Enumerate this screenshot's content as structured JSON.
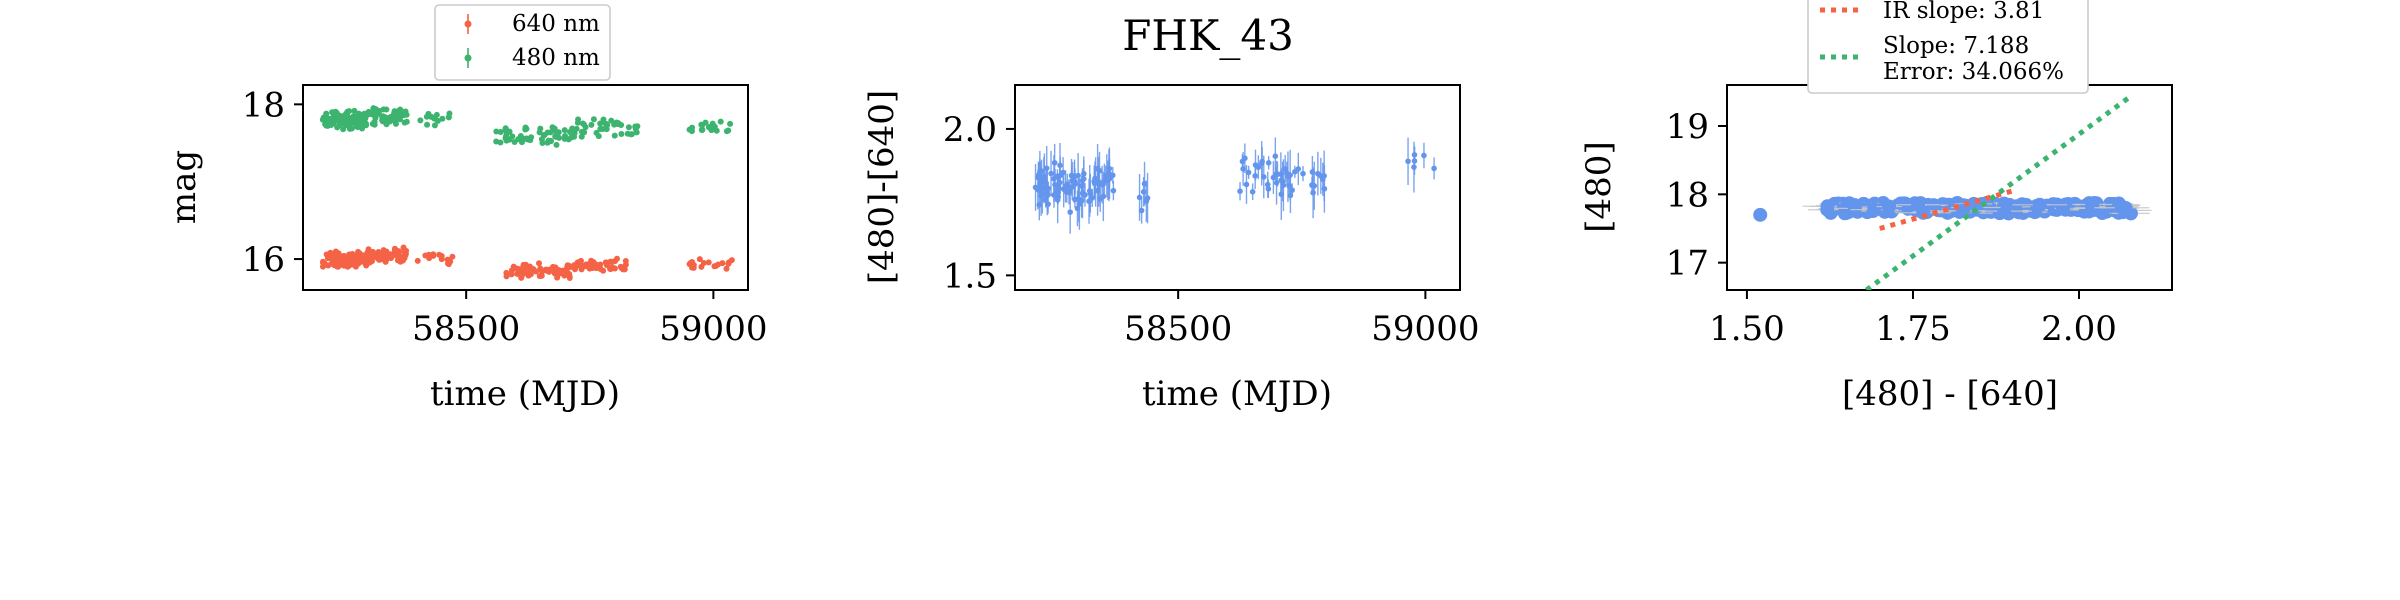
{
  "figure_title": "FHK_43",
  "colors": {
    "red": "#f56347",
    "green": "#3cb36f",
    "blue": "#6495ed",
    "gray": "#c8c8c8",
    "axis": "#000000"
  },
  "chart_data": [
    {
      "type": "scatter",
      "panel": "light-curves",
      "title": "",
      "xlabel": "time (MJD)",
      "ylabel": "mag",
      "xlim": [
        58170,
        59070
      ],
      "ylim": [
        18.25,
        15.6
      ],
      "xticks": [
        58500,
        59000
      ],
      "xtick_labels": [
        "58500",
        "59000"
      ],
      "yticks": [
        16,
        18
      ],
      "ytick_labels": [
        "16",
        "18"
      ],
      "legend_position": "above-plot",
      "series": [
        {
          "name": "640 nm",
          "color": "red",
          "points": [
            {
              "start": 58210,
              "end": 58300,
              "n": 110,
              "y": 16.0,
              "spread": 0.25
            },
            {
              "start": 58300,
              "end": 58380,
              "n": 60,
              "y": 16.05,
              "spread": 0.22
            },
            {
              "start": 58400,
              "end": 58480,
              "n": 14,
              "y": 16.0,
              "spread": 0.2
            },
            {
              "start": 58580,
              "end": 58720,
              "n": 60,
              "y": 15.85,
              "spread": 0.2
            },
            {
              "start": 58720,
              "end": 58830,
              "n": 40,
              "y": 15.92,
              "spread": 0.2
            },
            {
              "start": 58950,
              "end": 59040,
              "n": 18,
              "y": 15.92,
              "spread": 0.18
            }
          ]
        },
        {
          "name": "480 nm",
          "color": "green",
          "points": [
            {
              "start": 58210,
              "end": 58300,
              "n": 110,
              "y": 17.8,
              "spread": 0.28
            },
            {
              "start": 58300,
              "end": 58380,
              "n": 60,
              "y": 17.85,
              "spread": 0.25
            },
            {
              "start": 58400,
              "end": 58480,
              "n": 14,
              "y": 17.8,
              "spread": 0.2
            },
            {
              "start": 58560,
              "end": 58720,
              "n": 60,
              "y": 17.6,
              "spread": 0.28
            },
            {
              "start": 58720,
              "end": 58850,
              "n": 40,
              "y": 17.7,
              "spread": 0.25
            },
            {
              "start": 58950,
              "end": 59040,
              "n": 18,
              "y": 17.7,
              "spread": 0.18
            }
          ]
        }
      ]
    },
    {
      "type": "scatter",
      "panel": "color-curve",
      "title": "FHK_43",
      "xlabel": "time (MJD)",
      "ylabel": "[480]-[640]",
      "xlim": [
        58170,
        59070
      ],
      "ylim": [
        2.15,
        1.45
      ],
      "xticks": [
        58500,
        59000
      ],
      "xtick_labels": [
        "58500",
        "59000"
      ],
      "yticks": [
        1.5,
        2.0
      ],
      "ytick_labels": [
        "1.5",
        "2.0"
      ],
      "series": [
        {
          "name": "",
          "color": "blue",
          "error_bars": true,
          "points": [
            {
              "start": 58210,
              "end": 58300,
              "n": 60,
              "y": 1.8,
              "spread": 0.18
            },
            {
              "start": 58300,
              "end": 58380,
              "n": 35,
              "y": 1.8,
              "spread": 0.15
            },
            {
              "start": 58400,
              "end": 58440,
              "n": 6,
              "y": 1.78,
              "spread": 0.15
            },
            {
              "start": 58620,
              "end": 58700,
              "n": 20,
              "y": 1.85,
              "spread": 0.15
            },
            {
              "start": 58700,
              "end": 58800,
              "n": 25,
              "y": 1.82,
              "spread": 0.12
            },
            {
              "start": 58960,
              "end": 59030,
              "n": 6,
              "y": 1.87,
              "spread": 0.12
            }
          ]
        }
      ]
    },
    {
      "type": "scatter",
      "panel": "color-magnitude",
      "title": "",
      "xlabel": "[480] - [640]",
      "ylabel": "[480]",
      "xlim": [
        1.47,
        2.14
      ],
      "ylim": [
        19.6,
        16.6
      ],
      "xticks": [
        1.5,
        1.75,
        2.0
      ],
      "xtick_labels": [
        "1.50",
        "1.75",
        "2.00"
      ],
      "yticks": [
        17,
        18,
        19
      ],
      "ytick_labels": [
        "17",
        "18",
        "19"
      ],
      "legend_position": "above-plot",
      "series": [
        {
          "name": "",
          "color": "blue",
          "points": [
            {
              "start": 1.62,
              "end": 2.08,
              "n": 260,
              "y": 17.8,
              "spread": 0.18
            }
          ],
          "outliers": [
            {
              "x": 1.52,
              "y": 17.7
            },
            {
              "x": 2.07,
              "y": 17.8
            }
          ]
        }
      ],
      "lines": [
        {
          "name": "IR slope: 3.81",
          "color": "red",
          "x": [
            1.7,
            1.9
          ],
          "y": [
            17.5,
            18.05
          ]
        },
        {
          "name": "Slope: 7.188\nError: 34.066%",
          "color": "green",
          "x": [
            1.68,
            2.08
          ],
          "y": [
            16.6,
            19.45
          ]
        }
      ]
    }
  ]
}
